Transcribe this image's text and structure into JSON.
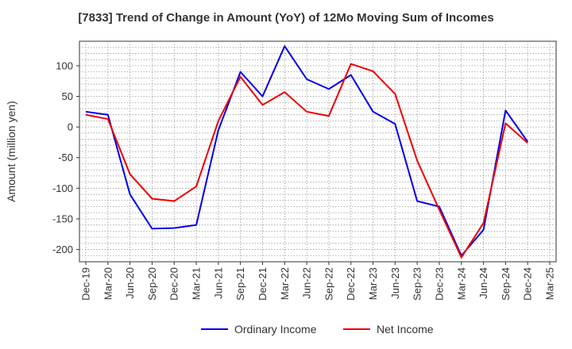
{
  "chart_data": {
    "type": "line",
    "title": "[7833]  Trend of Change in Amount (YoY) of 12Mo Moving Sum of Incomes",
    "xlabel": "",
    "ylabel": "Amount (million yen)",
    "ylim": [
      -220,
      140
    ],
    "yticks": [
      100,
      50,
      0,
      -50,
      -100,
      -150,
      -200
    ],
    "grid": true,
    "legend_position": "bottom",
    "categories": [
      "Dec-19",
      "Mar-20",
      "Jun-20",
      "Sep-20",
      "Dec-20",
      "Mar-21",
      "Jun-21",
      "Sep-21",
      "Dec-21",
      "Mar-22",
      "Jun-22",
      "Sep-22",
      "Dec-22",
      "Mar-23",
      "Jun-23",
      "Sep-23",
      "Dec-23",
      "Mar-24",
      "Jun-24",
      "Sep-24",
      "Dec-24",
      "Mar-25"
    ],
    "series": [
      {
        "name": "Ordinary Income",
        "color": "#0000ee",
        "values": [
          25,
          20,
          -110,
          -166,
          -165,
          -160,
          -5,
          90,
          50,
          132,
          78,
          62,
          85,
          25,
          5,
          -121,
          -130,
          -210,
          -168,
          27,
          -24,
          null
        ]
      },
      {
        "name": "Net Income",
        "color": "#ee0000",
        "values": [
          20,
          13,
          -77,
          -117,
          -121,
          -97,
          10,
          82,
          36,
          57,
          25,
          18,
          103,
          91,
          54,
          -55,
          -135,
          -213,
          -157,
          6,
          -26,
          null
        ]
      }
    ]
  }
}
